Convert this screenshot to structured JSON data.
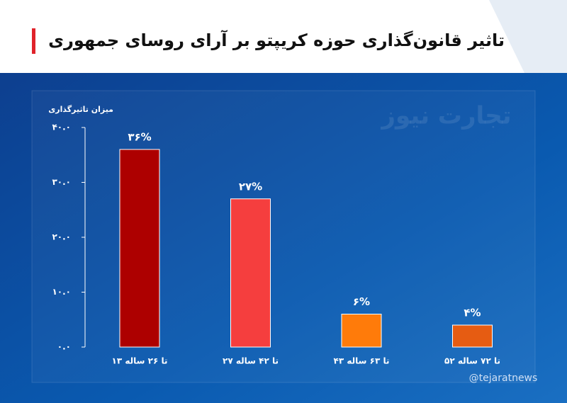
{
  "chart_data": {
    "type": "bar",
    "title": "تاثیر قانون‌گذاری حوزه کریپتو بر آرای روسای جمهوری",
    "y_label": "میزان تاثیرگذاری",
    "categories": [
      "۱۳ تا ۲۶ ساله",
      "۲۷ تا ۴۲ ساله",
      "۴۳ تا ۶۳ ساله",
      "۵۲ تا ۷۲ ساله"
    ],
    "values": [
      36,
      27,
      6,
      4
    ],
    "value_labels": [
      "۳۶%",
      "۲۷%",
      "۶%",
      "۴%"
    ],
    "colors": [
      "#ad0000",
      "#f53e3e",
      "#ff7b0a",
      "#e65c12"
    ],
    "ylim": [
      0,
      40
    ],
    "yticks": [
      {
        "value": 0,
        "label": "۰.۰"
      },
      {
        "value": 10,
        "label": "۱۰.۰"
      },
      {
        "value": 20,
        "label": "۲۰.۰"
      },
      {
        "value": 30,
        "label": "۳۰.۰"
      },
      {
        "value": 40,
        "label": "۴۰.۰"
      }
    ],
    "grid": false
  },
  "watermark": "تجارت نیوز",
  "handle": "@tejaratnews"
}
